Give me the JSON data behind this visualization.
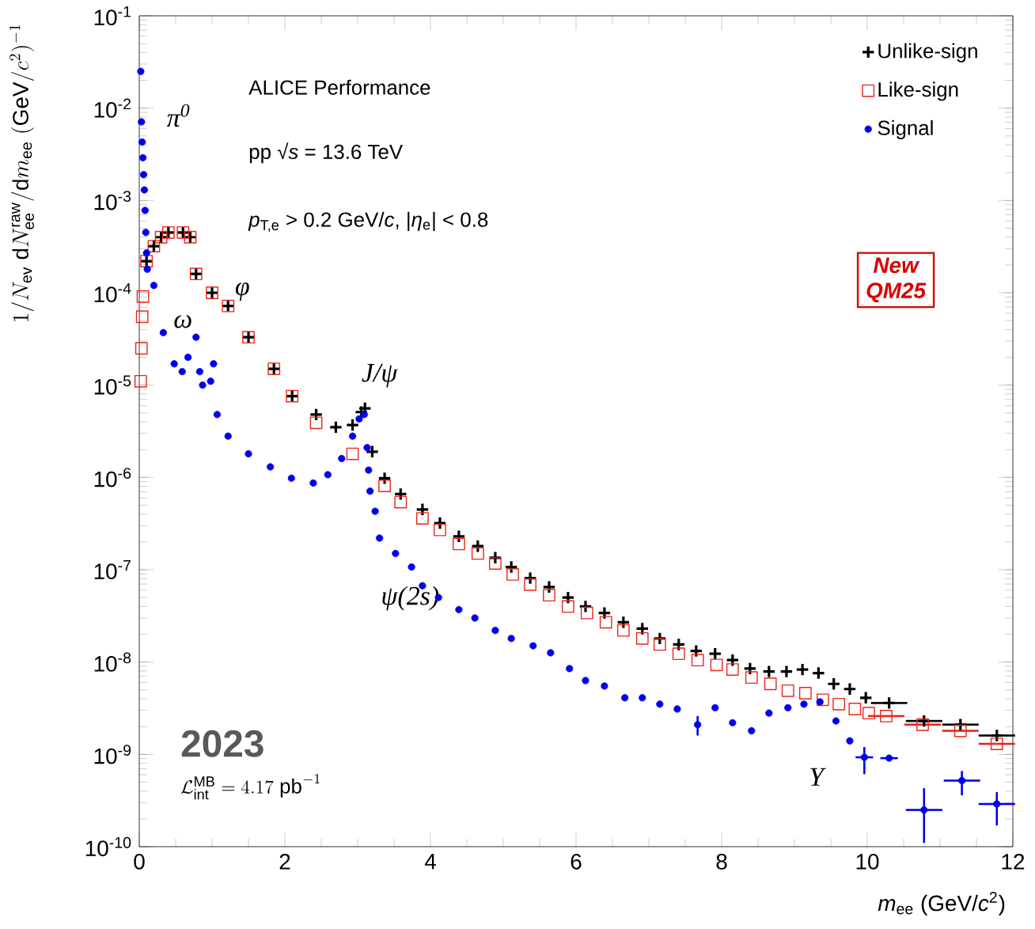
{
  "chart_data": {
    "type": "scatter",
    "xlabel": "*m*$_{ee}$ (GeV/*c*$^{2}$)",
    "ylabel": "1/N_{\\mathrm{ev}}\\;\\mathrm{d}N_{\\mathrm{ee}}^{\\mathrm{raw}}/\\mathrm{d}m_{\\mathrm{ee}}\\;(\\mathrm{GeV}/c^{2})^{-1}",
    "log": "y",
    "xlim": [
      0,
      12
    ],
    "ylim": [
      1e-10,
      0.1
    ],
    "xticks": [
      0,
      2,
      4,
      6,
      8,
      10,
      12
    ],
    "yticks": [
      {
        "value": 1e-10,
        "label": "10$^{-10}$"
      },
      {
        "value": 1e-09,
        "label": "10$^{-9}$"
      },
      {
        "value": 1e-08,
        "label": "10$^{-8}$"
      },
      {
        "value": 1e-07,
        "label": "10$^{-7}$"
      },
      {
        "value": 1e-06,
        "label": "10$^{-6}$"
      },
      {
        "value": 1e-05,
        "label": "10$^{-5}$"
      },
      {
        "value": 0.0001,
        "label": "10$^{-4}$"
      },
      {
        "value": 0.001,
        "label": "10$^{-3}$"
      },
      {
        "value": 0.01,
        "label": "10$^{-2}$"
      },
      {
        "value": 0.1,
        "label": "10$^{-1}$"
      }
    ],
    "legend": "top right",
    "series": [
      {
        "name": "Unlike-sign",
        "color": "#000000",
        "marker": "cross",
        "x": [
          0.1,
          0.2,
          0.3,
          0.4,
          0.6,
          0.7,
          0.78,
          1.0,
          1.22,
          1.5,
          1.85,
          2.1,
          2.43,
          2.7,
          2.93,
          3.05,
          3.1,
          3.2,
          3.37,
          3.59,
          3.89,
          4.13,
          4.39,
          4.65,
          4.89,
          5.11,
          5.37,
          5.63,
          5.89,
          6.13,
          6.39,
          6.65,
          6.91,
          7.15,
          7.41,
          7.65,
          7.91,
          8.15,
          8.39,
          8.65,
          8.89,
          9.11,
          9.33,
          9.54,
          9.76,
          9.98,
          10.3,
          10.78,
          11.28,
          11.78
        ],
        "values": [
          0.00022,
          0.00032,
          0.0004,
          0.00045,
          0.00045,
          0.0004,
          0.00016,
          0.0001,
          7.2e-05,
          3.3e-05,
          1.5e-05,
          7.6e-06,
          4.8e-06,
          3.5e-06,
          3.7e-06,
          5.1e-06,
          5.6e-06,
          1.9e-06,
          9.8e-07,
          6.6e-07,
          4.5e-07,
          3.2e-07,
          2.3e-07,
          1.8e-07,
          1.35e-07,
          1.07e-07,
          8.1e-08,
          6.5e-08,
          5e-08,
          4e-08,
          3.4e-08,
          2.7e-08,
          2.3e-08,
          1.8e-08,
          1.55e-08,
          1.32e-08,
          1.23e-08,
          1.05e-08,
          8.5e-09,
          7.9e-09,
          7.9e-09,
          8.3e-09,
          7.6e-09,
          5.8e-09,
          5.1e-09,
          4.1e-09,
          3.6e-09,
          2.3e-09,
          2.1e-09,
          1.6e-09
        ],
        "xerrors": [
          null,
          null,
          null,
          null,
          null,
          null,
          null,
          null,
          null,
          null,
          null,
          null,
          null,
          null,
          null,
          null,
          null,
          null,
          null,
          null,
          null,
          null,
          null,
          null,
          null,
          null,
          null,
          null,
          null,
          null,
          null,
          null,
          null,
          null,
          null,
          null,
          null,
          null,
          null,
          null,
          null,
          null,
          null,
          null,
          null,
          null,
          0.25,
          0.25,
          0.25,
          0.25
        ]
      },
      {
        "name": "Like-sign",
        "color": "#e8261c",
        "marker": "square",
        "x": [
          0.02,
          0.03,
          0.04,
          0.05,
          0.1,
          0.2,
          0.3,
          0.4,
          0.6,
          0.7,
          0.78,
          1.0,
          1.22,
          1.5,
          1.85,
          2.1,
          2.43,
          2.93,
          3.37,
          3.59,
          3.89,
          4.13,
          4.39,
          4.65,
          4.89,
          5.13,
          5.37,
          5.63,
          5.89,
          6.15,
          6.41,
          6.65,
          6.91,
          7.15,
          7.41,
          7.67,
          7.93,
          8.15,
          8.41,
          8.67,
          8.91,
          9.15,
          9.39,
          9.61,
          9.83,
          10.02,
          10.26,
          10.76,
          11.28,
          11.78
        ],
        "values": [
          1.1e-05,
          2.5e-05,
          5.5e-05,
          9.1e-05,
          0.00022,
          0.00032,
          0.0004,
          0.00045,
          0.00045,
          0.0004,
          0.00016,
          0.0001,
          7.2e-05,
          3.3e-05,
          1.5e-05,
          7.6e-06,
          3.9e-06,
          1.8e-06,
          8.1e-07,
          5.4e-07,
          3.6e-07,
          2.7e-07,
          1.9e-07,
          1.5e-07,
          1.17e-07,
          8.9e-08,
          6.9e-08,
          5.3e-08,
          4e-08,
          3.4e-08,
          2.7e-08,
          2.2e-08,
          1.8e-08,
          1.55e-08,
          1.23e-08,
          1.05e-08,
          9.3e-09,
          8.3e-09,
          6.8e-09,
          5.8e-09,
          4.9e-09,
          4.6e-09,
          3.9e-09,
          3.5e-09,
          3.1e-09,
          2.8e-09,
          2.6e-09,
          2.1e-09,
          1.8e-09,
          1.3e-09
        ],
        "xerrors": [
          null,
          null,
          null,
          null,
          null,
          null,
          null,
          null,
          null,
          null,
          null,
          null,
          null,
          null,
          null,
          null,
          null,
          null,
          null,
          null,
          null,
          null,
          null,
          null,
          null,
          null,
          null,
          null,
          null,
          null,
          null,
          null,
          null,
          null,
          null,
          null,
          null,
          null,
          null,
          null,
          null,
          null,
          null,
          null,
          null,
          null,
          0.25,
          0.25,
          0.25,
          0.25
        ]
      },
      {
        "name": "Signal",
        "color": "#0000ee",
        "marker": "circle",
        "x": [
          0.02,
          0.03,
          0.04,
          0.05,
          0.06,
          0.07,
          0.08,
          0.09,
          0.1,
          0.11,
          0.2,
          0.33,
          0.48,
          0.59,
          0.67,
          0.78,
          0.83,
          0.87,
          0.98,
          1.02,
          1.07,
          1.22,
          1.5,
          1.8,
          2.09,
          2.39,
          2.59,
          2.78,
          2.93,
          3.02,
          3.09,
          3.13,
          3.15,
          3.17,
          3.24,
          3.3,
          3.52,
          3.74,
          3.89,
          4.11,
          4.39,
          4.61,
          4.89,
          5.11,
          5.41,
          5.65,
          5.91,
          6.13,
          6.39,
          6.67,
          6.91,
          7.15,
          7.39,
          7.67,
          7.91,
          8.15,
          8.41,
          8.65,
          8.91,
          9.13,
          9.35,
          9.57,
          9.76,
          9.96,
          10.3,
          10.78,
          11.3,
          11.78
        ],
        "values": [
          0.025,
          0.0071,
          0.0043,
          0.0029,
          0.0019,
          0.0013,
          0.00078,
          0.00045,
          0.00027,
          0.00018,
          0.00012,
          3.7e-05,
          1.7e-05,
          1.4e-05,
          2e-05,
          3.3e-05,
          1.4e-05,
          1e-05,
          1.1e-05,
          1.7e-05,
          4.8e-06,
          2.8e-06,
          1.8e-06,
          1.3e-06,
          9.8e-07,
          8.7e-07,
          1.07e-06,
          1.6e-06,
          2.8e-06,
          4.3e-06,
          4.8e-06,
          2.1e-06,
          1.2e-06,
          7.1e-07,
          4.3e-07,
          2.2e-07,
          1.5e-07,
          1.07e-07,
          6.7e-08,
          5e-08,
          3.7e-08,
          3e-08,
          2.2e-08,
          1.8e-08,
          1.5e-08,
          1.26e-08,
          8.5e-09,
          6.3e-09,
          5.5e-09,
          4.1e-09,
          4.1e-09,
          3.5e-09,
          3.1e-09,
          2.1e-09,
          3.2e-09,
          2.2e-09,
          1.8e-09,
          2.8e-09,
          3.2e-09,
          3.5e-09,
          3.7e-09,
          2.3e-09,
          1.4e-09,
          9.3e-10,
          9.1e-10,
          2.5e-10,
          5.2e-10,
          2.9e-10
        ],
        "errors": [
          null,
          null,
          null,
          null,
          null,
          null,
          null,
          null,
          null,
          null,
          null,
          null,
          null,
          null,
          null,
          null,
          null,
          null,
          null,
          null,
          null,
          null,
          null,
          null,
          null,
          null,
          null,
          null,
          null,
          null,
          null,
          null,
          null,
          null,
          null,
          null,
          null,
          null,
          null,
          null,
          null,
          null,
          null,
          null,
          null,
          null,
          null,
          null,
          null,
          null,
          null,
          null,
          null,
          [
            1.6e-09,
            2.6e-09
          ],
          null,
          null,
          null,
          null,
          null,
          null,
          null,
          null,
          null,
          [
            6.1e-10,
            1.2e-09
          ],
          null,
          [
            1.1e-10,
            4.3e-10
          ],
          [
            3.6e-10,
            6.6e-10
          ],
          [
            1.7e-10,
            3.9e-10
          ]
        ],
        "xerrors": [
          null,
          null,
          null,
          null,
          null,
          null,
          null,
          null,
          null,
          null,
          null,
          null,
          null,
          null,
          null,
          null,
          null,
          null,
          null,
          null,
          null,
          null,
          null,
          null,
          null,
          null,
          null,
          null,
          null,
          null,
          null,
          null,
          null,
          null,
          null,
          null,
          null,
          null,
          null,
          null,
          null,
          null,
          null,
          null,
          null,
          null,
          null,
          null,
          null,
          null,
          null,
          null,
          null,
          null,
          null,
          null,
          null,
          null,
          null,
          null,
          null,
          null,
          null,
          0.12,
          0.12,
          0.25,
          0.25,
          0.25
        ]
      }
    ],
    "annotations": [
      "ALICE Performance",
      "pp √*s* = 13.6 TeV",
      "*p*$_{T,e}$ > 0.2 GeV/*c*, |*η*$_{e}$| < 0.8",
      "New QM25",
      "2023",
      "\\mathcal{L}_{\\mathrm{int}}^{\\mathrm{MB}} = 4.17\\ \\mathrm{pb}^{-1}",
      "π$^{0}$",
      "ω",
      "φ",
      "J/ψ",
      "ψ(2s)",
      "Υ"
    ]
  }
}
